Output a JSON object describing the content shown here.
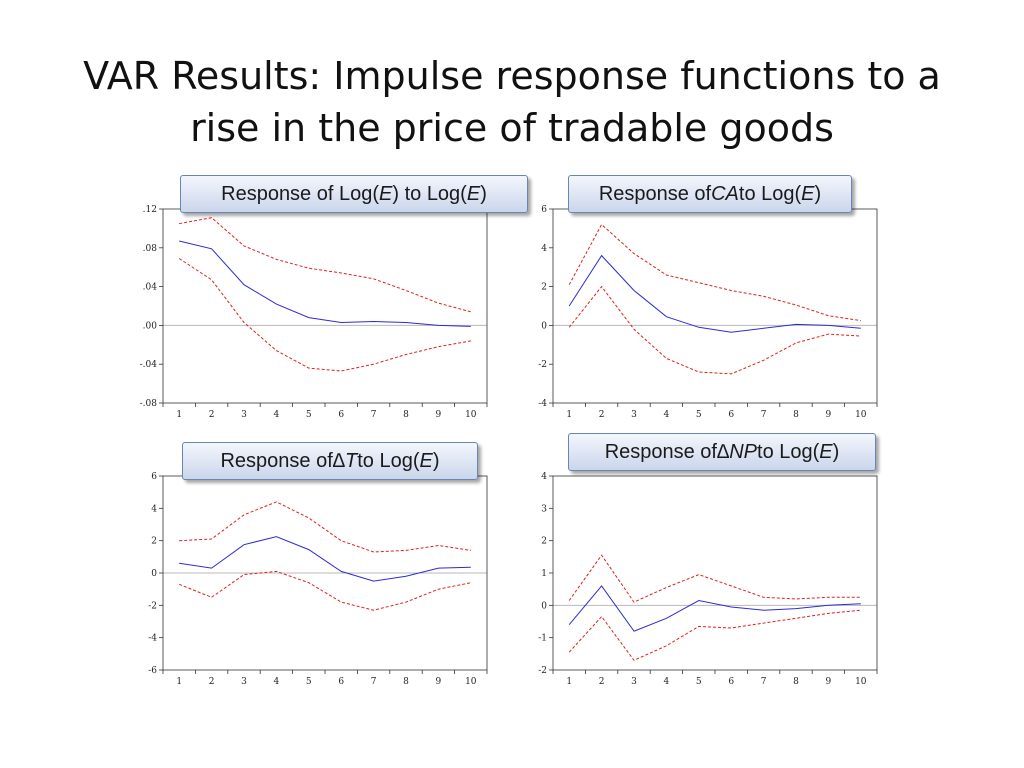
{
  "title": {
    "line1": "VAR Results: Impulse response functions to a",
    "line2": "rise in the price of tradable goods"
  },
  "labels": {
    "a": {
      "pre": "Response of Log(",
      "v1": "E",
      "mid": ") to Log(",
      "v2": "E",
      "post": ")"
    },
    "b": {
      "pre": "Response of ",
      "v1": "CA",
      "mid": " to Log(",
      "v2": "E",
      "post": ")"
    },
    "c": {
      "pre": "Response of ",
      "v1": "∆T",
      "mid": "  to Log(",
      "v2": "E",
      "post": ")"
    },
    "d": {
      "pre": "Response of ",
      "v1": "∆NP",
      "mid": "  to Log(",
      "v2": "E",
      "post": ")"
    }
  },
  "colors": {
    "response": "#2b2bd6",
    "band": "#e02020",
    "axis": "#333333",
    "zeroline": "#b8b8b8"
  },
  "chart_data": [
    {
      "type": "line",
      "x": [
        1,
        2,
        3,
        4,
        5,
        6,
        7,
        8,
        9,
        10
      ],
      "ylim": [
        -0.08,
        0.12
      ],
      "yticks": [
        -0.08,
        -0.04,
        0.0,
        0.04,
        0.08,
        0.12
      ],
      "ytick_labels": [
        "-.08",
        "-.04",
        ".00",
        ".04",
        ".08",
        ".12"
      ],
      "series": [
        {
          "values": [
            0.087,
            0.079,
            0.042,
            0.022,
            0.008,
            0.003,
            0.004,
            0.003,
            0.0,
            -0.001
          ],
          "style": "solid"
        },
        {
          "values": [
            0.105,
            0.111,
            0.082,
            0.068,
            0.059,
            0.054,
            0.048,
            0.036,
            0.023,
            0.014
          ],
          "style": "dashed"
        },
        {
          "values": [
            0.069,
            0.047,
            0.003,
            -0.026,
            -0.044,
            -0.047,
            -0.04,
            -0.03,
            -0.022,
            -0.016
          ],
          "style": "dashed"
        }
      ]
    },
    {
      "type": "line",
      "x": [
        1,
        2,
        3,
        4,
        5,
        6,
        7,
        8,
        9,
        10
      ],
      "ylim": [
        -4,
        6
      ],
      "yticks": [
        -4,
        -2,
        0,
        2,
        4,
        6
      ],
      "ytick_labels": [
        "-4",
        "-2",
        "0",
        "2",
        "4",
        "6"
      ],
      "series": [
        {
          "values": [
            1.0,
            3.6,
            1.8,
            0.45,
            -0.1,
            -0.35,
            -0.15,
            0.05,
            0.0,
            -0.15
          ],
          "style": "solid"
        },
        {
          "values": [
            2.1,
            5.2,
            3.7,
            2.6,
            2.2,
            1.8,
            1.5,
            1.05,
            0.5,
            0.25
          ],
          "style": "dashed"
        },
        {
          "values": [
            -0.1,
            2.0,
            -0.2,
            -1.7,
            -2.4,
            -2.5,
            -1.8,
            -0.9,
            -0.45,
            -0.55
          ],
          "style": "dashed"
        }
      ]
    },
    {
      "type": "line",
      "x": [
        1,
        2,
        3,
        4,
        5,
        6,
        7,
        8,
        9,
        10
      ],
      "ylim": [
        -6,
        6
      ],
      "yticks": [
        -6,
        -4,
        -2,
        0,
        2,
        4,
        6
      ],
      "ytick_labels": [
        "-6",
        "-4",
        "-2",
        "0",
        "2",
        "4",
        "6"
      ],
      "series": [
        {
          "values": [
            0.6,
            0.3,
            1.75,
            2.25,
            1.45,
            0.1,
            -0.5,
            -0.2,
            0.3,
            0.35
          ],
          "style": "solid"
        },
        {
          "values": [
            2.0,
            2.1,
            3.6,
            4.4,
            3.4,
            2.0,
            1.3,
            1.4,
            1.7,
            1.4
          ],
          "style": "dashed"
        },
        {
          "values": [
            -0.7,
            -1.5,
            -0.1,
            0.1,
            -0.6,
            -1.8,
            -2.3,
            -1.8,
            -1.0,
            -0.6
          ],
          "style": "dashed"
        }
      ]
    },
    {
      "type": "line",
      "x": [
        1,
        2,
        3,
        4,
        5,
        6,
        7,
        8,
        9,
        10
      ],
      "ylim": [
        -2,
        4
      ],
      "yticks": [
        -2,
        -1,
        0,
        1,
        2,
        3,
        4
      ],
      "ytick_labels": [
        "-2",
        "-1",
        "0",
        "1",
        "2",
        "3",
        "4"
      ],
      "series": [
        {
          "values": [
            -0.6,
            0.6,
            -0.8,
            -0.4,
            0.15,
            -0.05,
            -0.15,
            -0.1,
            0.0,
            0.05
          ],
          "style": "solid"
        },
        {
          "values": [
            0.15,
            1.55,
            0.1,
            0.55,
            0.95,
            0.6,
            0.25,
            0.2,
            0.25,
            0.25
          ],
          "style": "dashed"
        },
        {
          "values": [
            -1.45,
            -0.35,
            -1.7,
            -1.25,
            -0.65,
            -0.7,
            -0.55,
            -0.4,
            -0.25,
            -0.15
          ],
          "style": "dashed"
        }
      ]
    }
  ]
}
